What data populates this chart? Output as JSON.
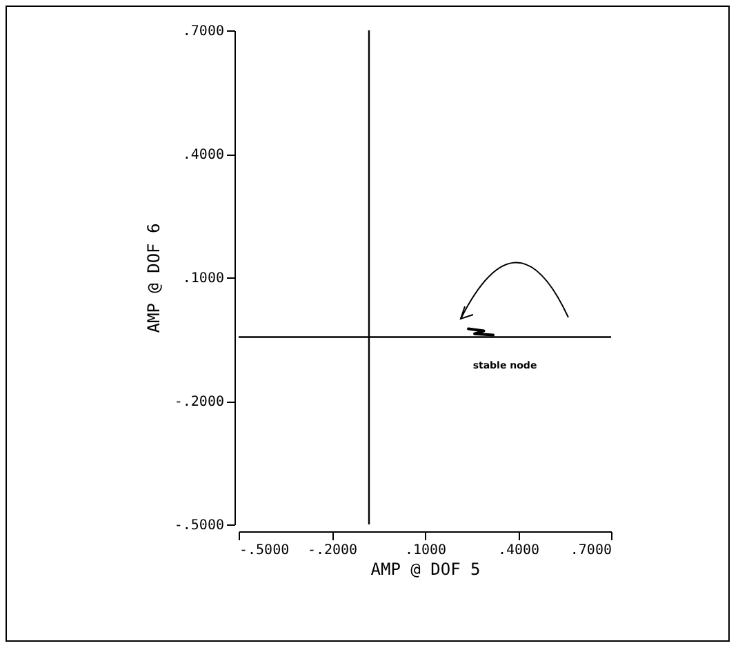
{
  "chart_data": {
    "type": "line",
    "xlabel": "AMP @ DOF   5",
    "ylabel": "AMP @ DOF   6",
    "xlim": [
      -0.5,
      0.7
    ],
    "ylim": [
      -0.5,
      0.7
    ],
    "xticks": [
      {
        "value": -0.5,
        "label": "-.5000"
      },
      {
        "value": -0.2,
        "label": "-.2000"
      },
      {
        "value": 0.1,
        "label": ".1000"
      },
      {
        "value": 0.4,
        "label": ".4000"
      },
      {
        "value": 0.7,
        "label": ".7000"
      }
    ],
    "yticks": [
      {
        "value": -0.5,
        "label": "-.5000"
      },
      {
        "value": -0.2,
        "label": "-.2000"
      },
      {
        "value": 0.1,
        "label": ".1000"
      },
      {
        "value": 0.4,
        "label": ".4000"
      },
      {
        "value": 0.7,
        "label": ".7000"
      }
    ],
    "x": [
      0.24,
      0.29,
      0.26,
      0.32
    ],
    "series": [
      {
        "color": "#000000",
        "values": [
          -0.025,
          -0.03,
          -0.037,
          -0.04
        ]
      }
    ],
    "ref_lines": [
      {
        "axis": "x",
        "value": -0.08,
        "color": "#000000"
      },
      {
        "axis": "y",
        "value": -0.045,
        "color": "#000000"
      }
    ],
    "annotations": [
      "stable node"
    ],
    "grid": false,
    "marker": "none",
    "line_style": "solid"
  }
}
